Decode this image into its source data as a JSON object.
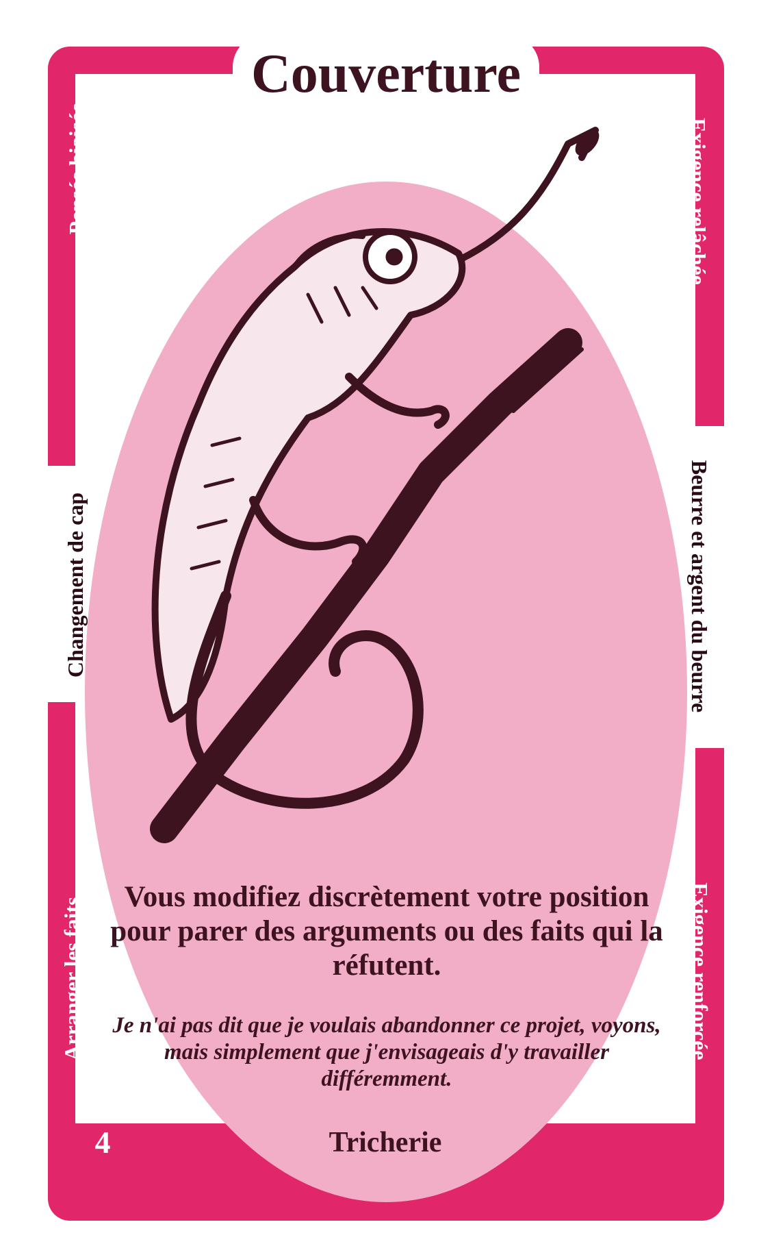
{
  "card": {
    "title": "Couverture",
    "category": "Tricherie",
    "number": "4",
    "description": "Vous modifiez discrètement votre position pour parer des arguments ou des faits qui la réfutent.",
    "example": "Je n'ai pas dit que je voulais abandonner ce projet, voyons, mais simplement que j'envisageais d'y travailler différemment."
  },
  "sides": {
    "left_top": "Pensée biaisée",
    "left_middle": "Changement de cap",
    "left_bottom": "Arranger les faits",
    "right_top": "Exigence relâchée",
    "right_middle": "Beurre et argent du beurre",
    "right_bottom": "Exigence renforcée"
  },
  "illustration": {
    "icon": "chameleon-icon"
  },
  "colors": {
    "frame": "#e2266a",
    "oval": "#f2aec6",
    "ink": "#3d1320"
  }
}
